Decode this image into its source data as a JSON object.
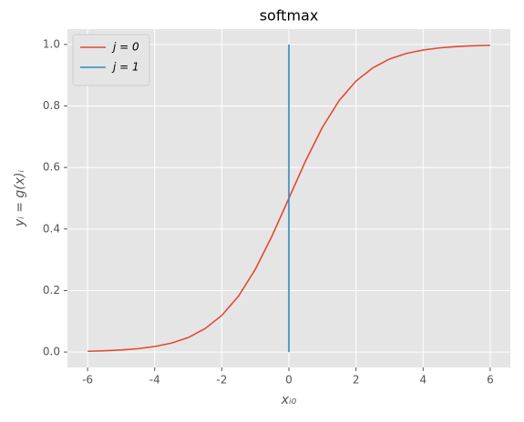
{
  "chart_data": {
    "type": "line",
    "title": "softmax",
    "x_label": "xᵢ₀",
    "y_label": "yᵢ = g(x)ᵢ",
    "series": [
      {
        "name": "j = 0",
        "color": "#E24A33",
        "x": [
          -6,
          -5.5,
          -5,
          -4.5,
          -4,
          -3.5,
          -3,
          -2.5,
          -2,
          -1.5,
          -1,
          -0.5,
          0,
          0.5,
          1,
          1.5,
          2,
          2.5,
          3,
          3.5,
          4,
          4.5,
          5,
          5.5,
          6
        ],
        "values": [
          0.0025,
          0.0041,
          0.0067,
          0.011,
          0.018,
          0.029,
          0.047,
          0.076,
          0.119,
          0.182,
          0.269,
          0.378,
          0.5,
          0.622,
          0.731,
          0.818,
          0.881,
          0.924,
          0.953,
          0.971,
          0.982,
          0.989,
          0.9933,
          0.9959,
          0.9975
        ]
      },
      {
        "name": "j = 1",
        "color": "#348ABD",
        "x": [
          0,
          0
        ],
        "values": [
          0,
          1
        ]
      }
    ],
    "xlim": [
      -6.6,
      6.6
    ],
    "xticks": [
      -6,
      -4,
      -2,
      0,
      2,
      4,
      6
    ],
    "ylim": [
      -0.05,
      1.05
    ],
    "yticks": [
      {
        "value": 0,
        "label": "0.0"
      },
      {
        "value": 0.2,
        "label": "0.2"
      },
      {
        "value": 0.4,
        "label": "0.4"
      },
      {
        "value": 0.6,
        "label": "0.6"
      },
      {
        "value": 0.8,
        "label": "0.8"
      },
      {
        "value": 1,
        "label": "1.0"
      }
    ],
    "grid": true,
    "legend": "upper-left"
  }
}
